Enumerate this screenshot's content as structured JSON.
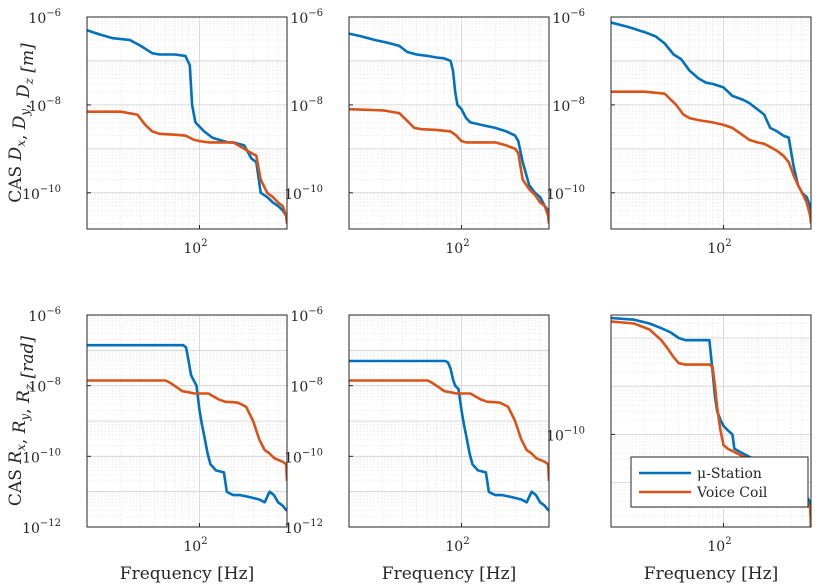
{
  "colors": {
    "series1": "#0072BD",
    "series2": "#D95319",
    "axis": "#262626",
    "grid": "#d9d9d9"
  },
  "legend": {
    "placement": "bottom-right",
    "entries": [
      "μ-Station",
      "Voice Coil"
    ]
  },
  "chart_data": [
    {
      "type": "line",
      "xlabel": "",
      "ylabel": "CAS D_x, D_y, D_z [m]",
      "xlim": [
        10,
        600
      ],
      "ylim": [
        1.5e-11,
        1e-06
      ],
      "xscale": "log",
      "yscale": "log",
      "xticks": [
        {
          "v": 100,
          "b": "10",
          "e": "2"
        }
      ],
      "yticks": [
        {
          "v": 1e-06,
          "b": "10",
          "e": "−6"
        },
        {
          "v": 1e-08,
          "b": "10",
          "e": "−8"
        },
        {
          "v": 1e-10,
          "b": "10",
          "e": "−10"
        }
      ],
      "grid": true,
      "series": [
        {
          "name": "μ-Station",
          "x": [
            10,
            13,
            17,
            24,
            30,
            38,
            44,
            60,
            75,
            82,
            86,
            92,
            110,
            130,
            150,
            180,
            200,
            250,
            290,
            320,
            350,
            400,
            450,
            500,
            550,
            590,
            600
          ],
          "y": [
            5e-07,
            4e-07,
            3.3e-07,
            3e-07,
            2.2e-07,
            1.5e-07,
            1.4e-07,
            1.4e-07,
            1.3e-07,
            8e-08,
            1e-08,
            4e-09,
            2.5e-09,
            1.8e-09,
            1.6e-09,
            1.4e-09,
            1.4e-09,
            1.2e-09,
            6e-10,
            5e-10,
            1e-10,
            8e-11,
            6e-11,
            5e-11,
            4e-11,
            3e-11,
            2e-11
          ]
        },
        {
          "name": "Voice Coil",
          "x": [
            10,
            20,
            28,
            33,
            38,
            44,
            60,
            75,
            90,
            100,
            120,
            150,
            180,
            200,
            250,
            290,
            320,
            350,
            400,
            450,
            500,
            550,
            590,
            600
          ],
          "y": [
            7e-09,
            7e-09,
            6e-09,
            3.5e-09,
            2.5e-09,
            2.2e-09,
            2.1e-09,
            2e-09,
            1.6e-09,
            1.5e-09,
            1.4e-09,
            1.4e-09,
            1.4e-09,
            1.4e-09,
            1e-09,
            8e-10,
            7e-10,
            2e-10,
            1e-10,
            8e-11,
            6e-11,
            5e-11,
            3e-11,
            2e-11
          ]
        }
      ]
    },
    {
      "type": "line",
      "xlabel": "",
      "ylabel": "",
      "xlim": [
        10,
        600
      ],
      "ylim": [
        1.5e-11,
        1e-06
      ],
      "xscale": "log",
      "yscale": "log",
      "xticks": [
        {
          "v": 100,
          "b": "10",
          "e": "2"
        }
      ],
      "yticks": [
        {
          "v": 1e-06,
          "b": "10",
          "e": "−6"
        },
        {
          "v": 1e-08,
          "b": "10",
          "e": "−8"
        },
        {
          "v": 1e-10,
          "b": "10",
          "e": "−10"
        }
      ],
      "grid": true,
      "series": [
        {
          "name": "μ-Station",
          "x": [
            10,
            13,
            17,
            22,
            28,
            33,
            40,
            50,
            60,
            70,
            80,
            84,
            88,
            92,
            100,
            110,
            120,
            150,
            200,
            250,
            300,
            320,
            350,
            400,
            450,
            500,
            550,
            590,
            600
          ],
          "y": [
            4.2e-07,
            3.6e-07,
            3e-07,
            2.6e-07,
            2.2e-07,
            1.6e-07,
            1.4e-07,
            1.3e-07,
            1.2e-07,
            1.15e-07,
            1e-07,
            6e-08,
            2e-08,
            1e-08,
            8e-09,
            5e-09,
            4e-09,
            3.5e-09,
            3e-09,
            2.5e-09,
            2e-09,
            1.5e-09,
            5e-10,
            1.5e-10,
            1e-10,
            8e-11,
            5e-11,
            4e-11,
            2e-11
          ]
        },
        {
          "name": "Voice Coil",
          "x": [
            10,
            20,
            28,
            34,
            38,
            44,
            60,
            80,
            90,
            100,
            110,
            120,
            150,
            200,
            250,
            300,
            320,
            350,
            400,
            450,
            500,
            550,
            590,
            600
          ],
          "y": [
            8e-09,
            7.5e-09,
            6.5e-09,
            4e-09,
            3e-09,
            2.8e-09,
            2.7e-09,
            2.5e-09,
            2e-09,
            1.5e-09,
            1.4e-09,
            1.4e-09,
            1.4e-09,
            1.4e-09,
            1.2e-09,
            1e-09,
            8e-10,
            2e-10,
            1.2e-10,
            9e-11,
            6e-11,
            5e-11,
            3e-11,
            2e-11
          ]
        }
      ]
    },
    {
      "type": "line",
      "xlabel": "",
      "ylabel": "",
      "xlim": [
        10,
        600
      ],
      "ylim": [
        1.5e-11,
        1e-06
      ],
      "xscale": "log",
      "yscale": "log",
      "xticks": [
        {
          "v": 100,
          "b": "10",
          "e": "2"
        }
      ],
      "yticks": [
        {
          "v": 1e-06,
          "b": "10",
          "e": "−6"
        },
        {
          "v": 1e-08,
          "b": "10",
          "e": "−8"
        },
        {
          "v": 1e-10,
          "b": "10",
          "e": "−10"
        }
      ],
      "grid": true,
      "series": [
        {
          "name": "μ-Station",
          "x": [
            10,
            14,
            20,
            25,
            30,
            36,
            42,
            50,
            60,
            70,
            80,
            100,
            120,
            150,
            170,
            200,
            230,
            260,
            300,
            340,
            380,
            420,
            460,
            500,
            550,
            590,
            600
          ],
          "y": [
            7.5e-07,
            6e-07,
            4.5e-07,
            3.6e-07,
            2.5e-07,
            1.4e-07,
            1.1e-07,
            6e-08,
            4e-08,
            3.2e-08,
            3e-08,
            2.5e-08,
            1.6e-08,
            1.3e-08,
            1.1e-08,
            8e-09,
            6e-09,
            3e-09,
            2.5e-09,
            2e-09,
            1.8e-09,
            4e-10,
            1.5e-10,
            1e-10,
            8e-11,
            5e-11,
            2e-11
          ]
        },
        {
          "name": "Voice Coil",
          "x": [
            10,
            20,
            30,
            38,
            44,
            50,
            60,
            80,
            100,
            120,
            150,
            170,
            200,
            230,
            260,
            300,
            340,
            380,
            420,
            460,
            500,
            550,
            590,
            600
          ],
          "y": [
            2e-08,
            2e-08,
            1.8e-08,
            1e-08,
            6e-09,
            5e-09,
            4.5e-09,
            4e-09,
            3.5e-09,
            3e-09,
            2e-09,
            1.6e-09,
            1.4e-09,
            1.3e-09,
            1.1e-09,
            9e-10,
            7e-10,
            5e-10,
            2.5e-10,
            1.5e-10,
            1e-10,
            6e-11,
            3e-11,
            2e-11
          ]
        }
      ]
    },
    {
      "type": "line",
      "xlabel": "Frequency [Hz]",
      "ylabel": "CAS R_x, R_y, R_z [rad]",
      "xlim": [
        10,
        600
      ],
      "ylim": [
        1e-12,
        1e-06
      ],
      "xscale": "log",
      "yscale": "log",
      "xticks": [
        {
          "v": 100,
          "b": "10",
          "e": "2"
        }
      ],
      "yticks": [
        {
          "v": 1e-06,
          "b": "10",
          "e": "−6"
        },
        {
          "v": 1e-08,
          "b": "10",
          "e": "−8"
        },
        {
          "v": 1e-10,
          "b": "10",
          "e": "−10"
        },
        {
          "v": 1e-12,
          "b": "10",
          "e": "−12"
        }
      ],
      "grid": true,
      "series": [
        {
          "name": "μ-Station",
          "x": [
            10,
            30,
            60,
            72,
            76,
            80,
            84,
            88,
            94,
            100,
            105,
            110,
            118,
            125,
            140,
            165,
            175,
            185,
            200,
            230,
            280,
            340,
            380,
            420,
            460,
            500,
            550,
            590,
            600
          ],
          "y": [
            1.4e-07,
            1.4e-07,
            1.4e-07,
            1.4e-07,
            1.2e-07,
            5e-08,
            2e-08,
            1.5e-08,
            1e-08,
            2e-09,
            8e-10,
            4e-10,
            1.2e-10,
            6e-11,
            4e-11,
            3.5e-11,
            1e-11,
            9e-12,
            8e-12,
            8e-12,
            7e-12,
            6e-12,
            5e-12,
            1e-11,
            8e-12,
            5e-12,
            4e-12,
            3e-12,
            3e-12
          ]
        },
        {
          "name": "Voice Coil",
          "x": [
            10,
            30,
            50,
            55,
            60,
            70,
            80,
            90,
            100,
            120,
            150,
            170,
            200,
            220,
            260,
            300,
            340,
            380,
            420,
            460,
            500,
            550,
            590,
            600
          ],
          "y": [
            1.4e-08,
            1.4e-08,
            1.4e-08,
            1.2e-08,
            1e-08,
            7e-09,
            6.5e-09,
            6e-09,
            6e-09,
            6e-09,
            4e-09,
            3.5e-09,
            3.4e-09,
            3.3e-09,
            2.5e-09,
            1e-09,
            3e-10,
            1.5e-10,
            1.2e-10,
            9e-11,
            8e-11,
            7e-11,
            6e-11,
            2e-11
          ]
        }
      ]
    },
    {
      "type": "line",
      "xlabel": "Frequency [Hz]",
      "ylabel": "",
      "xlim": [
        10,
        600
      ],
      "ylim": [
        1e-12,
        1e-06
      ],
      "xscale": "log",
      "yscale": "log",
      "xticks": [
        {
          "v": 100,
          "b": "10",
          "e": "2"
        }
      ],
      "yticks": [
        {
          "v": 1e-06,
          "b": "10",
          "e": "−6"
        },
        {
          "v": 1e-08,
          "b": "10",
          "e": "−8"
        },
        {
          "v": 1e-10,
          "b": "10",
          "e": "−10"
        },
        {
          "v": 1e-12,
          "b": "10",
          "e": "−12"
        }
      ],
      "grid": true,
      "series": [
        {
          "name": "μ-Station",
          "x": [
            10,
            30,
            60,
            72,
            76,
            80,
            84,
            88,
            94,
            100,
            105,
            110,
            118,
            125,
            140,
            165,
            175,
            185,
            200,
            230,
            280,
            340,
            380,
            420,
            460,
            500,
            550,
            590,
            600
          ],
          "y": [
            5e-08,
            5e-08,
            5e-08,
            5e-08,
            4.5e-08,
            3e-08,
            1.5e-08,
            1e-08,
            8e-09,
            2e-09,
            8e-10,
            4e-10,
            1.2e-10,
            6e-11,
            4e-11,
            3.5e-11,
            1e-11,
            9e-12,
            8e-12,
            8e-12,
            7e-12,
            6e-12,
            5e-12,
            1e-11,
            8e-12,
            5e-12,
            4e-12,
            3e-12,
            3e-12
          ]
        },
        {
          "name": "Voice Coil",
          "x": [
            10,
            30,
            50,
            55,
            60,
            70,
            80,
            90,
            100,
            120,
            150,
            170,
            200,
            220,
            260,
            300,
            340,
            380,
            420,
            460,
            500,
            550,
            590,
            600
          ],
          "y": [
            1.4e-08,
            1.4e-08,
            1.4e-08,
            1.2e-08,
            1e-08,
            7e-09,
            6.5e-09,
            6e-09,
            6e-09,
            6e-09,
            4e-09,
            3.5e-09,
            3.4e-09,
            3.3e-09,
            2.5e-09,
            1e-09,
            3e-10,
            1.5e-10,
            1.2e-10,
            9e-11,
            8e-11,
            7e-11,
            6e-11,
            2e-11
          ]
        }
      ]
    },
    {
      "type": "line",
      "xlabel": "Frequency [Hz]",
      "ylabel": "",
      "xlim": [
        10,
        600
      ],
      "ylim": [
        1.2e-12,
        3e-08
      ],
      "xscale": "log",
      "yscale": "log",
      "xticks": [
        {
          "v": 100,
          "b": "10",
          "e": "2"
        }
      ],
      "yticks": [
        {
          "v": 1e-10,
          "b": "10",
          "e": "−10"
        }
      ],
      "grid": true,
      "series": [
        {
          "name": "μ-Station",
          "x": [
            10,
            16,
            22,
            28,
            34,
            40,
            46,
            60,
            75,
            80,
            84,
            88,
            94,
            100,
            110,
            120,
            125,
            150,
            180,
            200,
            250,
            300,
            350,
            400,
            450,
            500,
            550,
            590,
            600
          ],
          "y": [
            2.6e-08,
            2.4e-08,
            2e-08,
            1.6e-08,
            1.3e-08,
            1e-08,
            9e-09,
            9e-09,
            9e-09,
            2e-09,
            6e-10,
            3e-10,
            2e-10,
            1.5e-10,
            1.2e-10,
            1e-10,
            5e-11,
            4e-11,
            3.2e-11,
            2.5e-11,
            1.8e-11,
            1.5e-11,
            1.2e-11,
            1e-11,
            8e-12,
            6e-12,
            5e-12,
            4e-12,
            1.2e-12
          ]
        },
        {
          "name": "Voice Coil",
          "x": [
            10,
            16,
            22,
            28,
            32,
            36,
            40,
            46,
            60,
            75,
            80,
            84,
            88,
            94,
            100,
            110,
            120,
            150,
            180,
            200,
            250,
            300,
            350,
            400,
            450,
            500,
            550,
            590,
            600
          ],
          "y": [
            2.2e-08,
            2e-08,
            1.5e-08,
            9e-09,
            6e-09,
            4e-09,
            3e-09,
            2.8e-09,
            2.8e-09,
            2.8e-09,
            2.5e-09,
            1e-09,
            3.5e-10,
            1.2e-10,
            6e-11,
            5e-11,
            4.5e-11,
            3.5e-11,
            3e-11,
            2.5e-11,
            2e-11,
            1.7e-11,
            1.4e-11,
            1.1e-11,
            8e-12,
            6e-12,
            4e-12,
            3e-12,
            1.2e-12
          ]
        }
      ]
    }
  ]
}
